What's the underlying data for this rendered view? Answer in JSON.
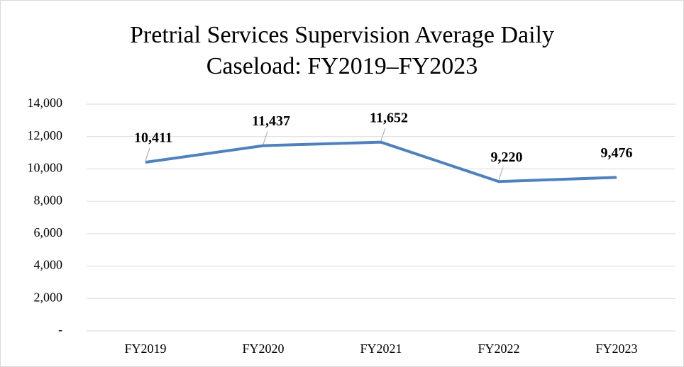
{
  "chart_data": {
    "type": "line",
    "title": "Pretrial Services Supervision Average Daily Caseload: FY2019–FY2023",
    "categories": [
      "FY2019",
      "FY2020",
      "FY2021",
      "FY2022",
      "FY2023"
    ],
    "series": [
      {
        "color": "#4f81bd",
        "values": [
          10411,
          11437,
          11652,
          9220,
          9476
        ],
        "value_labels": [
          "10,411",
          "11,437",
          "11,652",
          "9,220",
          "9,476"
        ]
      }
    ],
    "ylim": [
      0,
      14000
    ],
    "yticks": [
      {
        "value": 0,
        "label": "-"
      },
      {
        "value": 2000,
        "label": "2,000"
      },
      {
        "value": 4000,
        "label": "4,000"
      },
      {
        "value": 6000,
        "label": "6,000"
      },
      {
        "value": 8000,
        "label": "8,000"
      },
      {
        "value": 10000,
        "label": "10,000"
      },
      {
        "value": 12000,
        "label": "12,000"
      },
      {
        "value": 14000,
        "label": "14,000"
      }
    ],
    "grid": true
  }
}
